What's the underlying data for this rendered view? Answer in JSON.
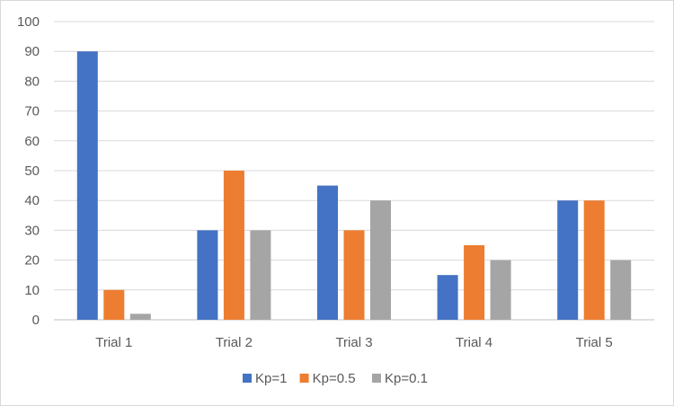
{
  "chart_data": {
    "type": "bar",
    "categories": [
      "Trial 1",
      "Trial 2",
      "Trial 3",
      "Trial 4",
      "Trial 5"
    ],
    "series": [
      {
        "name": "Kp=1",
        "color": "#4472C4",
        "values": [
          90,
          30,
          45,
          15,
          40
        ]
      },
      {
        "name": "Kp=0.5",
        "color": "#ED7D31",
        "values": [
          10,
          50,
          30,
          25,
          40
        ]
      },
      {
        "name": "Kp=0.1",
        "color": "#A5A5A5",
        "values": [
          2,
          30,
          40,
          20,
          20
        ]
      }
    ],
    "ylim": [
      0,
      100
    ],
    "yticks": [
      0,
      10,
      20,
      30,
      40,
      50,
      60,
      70,
      80,
      90,
      100
    ],
    "grid": true,
    "legend": "bottom-center"
  }
}
